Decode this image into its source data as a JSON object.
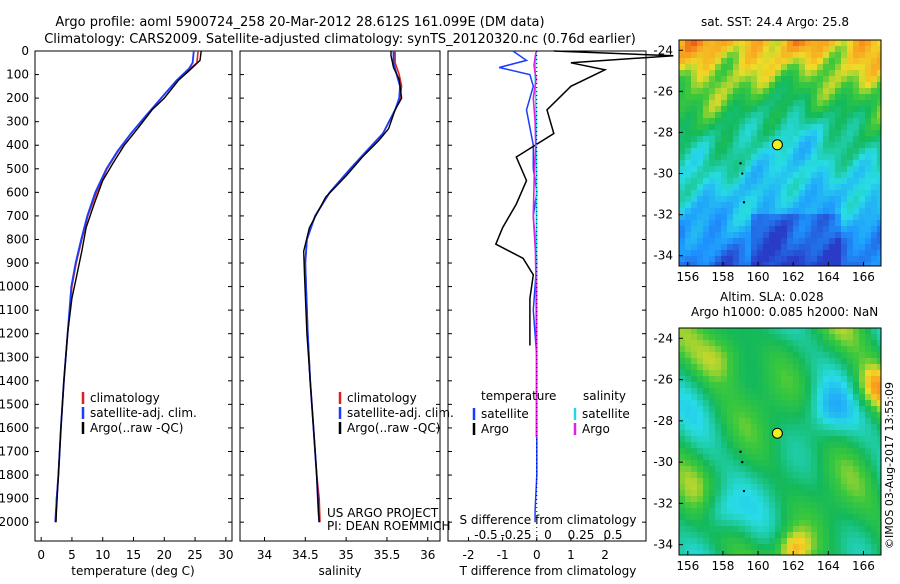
{
  "title": {
    "line1": "Argo profile: aoml 5900724_258 20-Mar-2012 28.612S 161.099E (DM data)",
    "line2": "Climatology: CARS2009. Satellite-adjusted climatology: synTS_20120320.nc (0.76d earlier)"
  },
  "colors": {
    "climatology": "#e02020",
    "satellite": "#1a3cff",
    "argo": "#000000",
    "sat_salinity": "#22d8e8",
    "argo_salinity": "#e020e0"
  },
  "chart_data": [
    {
      "id": "temperature",
      "type": "line",
      "xlabel": "temperature (deg C)",
      "xlim": [
        -1,
        31
      ],
      "xticks": [
        0,
        5,
        10,
        15,
        20,
        25,
        30
      ],
      "ylim": [
        0,
        2080
      ],
      "yticks": [
        0,
        100,
        200,
        300,
        400,
        500,
        600,
        700,
        800,
        900,
        1000,
        1100,
        1200,
        1300,
        1400,
        1500,
        1600,
        1700,
        1800,
        1900,
        2000
      ],
      "legend": [
        "climatology",
        "satellite-adj. clim.",
        "Argo(..raw -QC)"
      ],
      "series": [
        {
          "name": "climatology",
          "x": [
            25.5,
            25.3,
            24.2,
            22.0,
            19.5,
            17.0,
            14.6,
            12.5,
            10.7,
            9.0,
            7.6,
            6.6,
            5.7,
            5.0,
            4.3,
            3.7,
            3.2,
            2.8,
            2.5,
            2.4
          ],
          "y": [
            0,
            50,
            75,
            125,
            200,
            275,
            350,
            425,
            500,
            600,
            700,
            800,
            900,
            1000,
            1200,
            1400,
            1600,
            1800,
            1900,
            2000
          ]
        },
        {
          "name": "satellite-adj. clim.",
          "x": [
            24.8,
            24.6,
            24.0,
            22.0,
            19.5,
            17.0,
            14.6,
            12.4,
            10.6,
            8.8,
            7.5,
            6.5,
            5.6,
            4.9,
            4.3,
            3.7,
            3.2,
            2.8,
            2.4,
            2.3
          ],
          "y": [
            0,
            50,
            75,
            125,
            200,
            275,
            350,
            425,
            500,
            600,
            700,
            800,
            900,
            1000,
            1200,
            1400,
            1600,
            1800,
            1950,
            2000
          ]
        },
        {
          "name": "Argo(..raw -QC)",
          "x": [
            26.0,
            25.9,
            25.8,
            24.2,
            22.3,
            20.0,
            18.0,
            15.8,
            13.5,
            11.7,
            10.0,
            8.6,
            7.3,
            6.6,
            5.8,
            5.0,
            4.3,
            3.7,
            3.2,
            2.8,
            2.5,
            2.4
          ],
          "y": [
            0,
            20,
            40,
            80,
            125,
            200,
            250,
            325,
            400,
            475,
            550,
            650,
            750,
            850,
            950,
            1050,
            1200,
            1400,
            1600,
            1800,
            1950,
            2000
          ]
        }
      ]
    },
    {
      "id": "salinity",
      "type": "line",
      "xlabel": "salinity",
      "xlim": [
        33.7,
        36.15
      ],
      "xticks": [
        34,
        34.5,
        35,
        35.5,
        36
      ],
      "ylim": [
        0,
        2080
      ],
      "legend": [
        "climatology",
        "satellite-adj. clim.",
        "Argo(..raw -QC)"
      ],
      "annotation": [
        "US ARGO PROJECT",
        "PI: DEAN ROEMMICH"
      ],
      "series": [
        {
          "name": "climatology",
          "x": [
            35.6,
            35.6,
            35.65,
            35.68,
            35.66,
            35.6,
            35.45,
            35.25,
            35.05,
            34.8,
            34.62,
            34.52,
            34.5,
            34.51,
            34.53,
            34.56,
            34.6,
            34.64,
            34.67,
            34.68
          ],
          "y": [
            0,
            50,
            100,
            150,
            200,
            250,
            350,
            425,
            500,
            600,
            700,
            800,
            900,
            1000,
            1200,
            1400,
            1600,
            1800,
            1900,
            2000
          ]
        },
        {
          "name": "satellite-adj. clim.",
          "x": [
            35.58,
            35.58,
            35.62,
            35.66,
            35.65,
            35.6,
            35.45,
            35.25,
            35.05,
            34.8,
            34.62,
            34.52,
            34.5,
            34.51,
            34.53,
            34.56,
            34.6,
            34.64,
            34.66,
            34.67
          ],
          "y": [
            0,
            50,
            100,
            150,
            200,
            250,
            350,
            425,
            500,
            600,
            700,
            800,
            900,
            1000,
            1200,
            1400,
            1600,
            1800,
            1950,
            2000
          ]
        },
        {
          "name": "Argo(..raw -QC)",
          "x": [
            35.55,
            35.55,
            35.58,
            35.65,
            35.68,
            35.6,
            35.52,
            35.4,
            35.2,
            35.0,
            34.75,
            34.55,
            34.48,
            34.49,
            34.52,
            34.56,
            34.6,
            34.64,
            34.66,
            34.67
          ],
          "y": [
            0,
            20,
            70,
            120,
            200,
            250,
            330,
            380,
            450,
            530,
            620,
            750,
            850,
            950,
            1200,
            1400,
            1600,
            1800,
            1950,
            2000
          ]
        }
      ]
    },
    {
      "id": "differences",
      "type": "line",
      "xlabel_bottom": "T difference from climatology",
      "xlabel_top": "S difference from climatology",
      "xlim": [
        -2.6,
        3.2
      ],
      "xticks_T": [
        -2,
        -1,
        0,
        1,
        2
      ],
      "xticks_S": [
        "-0.5",
        "-0.25",
        "0",
        "0.25",
        "0.5"
      ],
      "ylim": [
        0,
        2080
      ],
      "legend_left": {
        "title": "temperature",
        "items": [
          "satellite",
          "Argo"
        ]
      },
      "legend_right": {
        "title": "salinity",
        "items": [
          "satellite",
          "Argo"
        ]
      },
      "series": [
        {
          "name": "T satellite",
          "x": [
            -0.7,
            -0.3,
            -1.1,
            -0.2,
            -0.1,
            -0.3,
            -0.1,
            -0.1,
            0.0,
            -0.1,
            0.0,
            -0.1,
            0.0,
            0.0,
            0.0,
            -0.05,
            -0.05
          ],
          "y": [
            0,
            40,
            70,
            100,
            150,
            250,
            400,
            500,
            600,
            700,
            900,
            1100,
            1300,
            1500,
            1800,
            1950,
            2000
          ]
        },
        {
          "name": "T Argo",
          "x": [
            0.5,
            4.0,
            1.0,
            2.0,
            1.0,
            0.3,
            0.5,
            -0.6,
            -0.3,
            -0.6,
            -1.0,
            -1.2,
            -0.4,
            -0.1,
            -0.2,
            -0.2,
            -0.2
          ],
          "y": [
            0,
            20,
            50,
            80,
            150,
            250,
            350,
            450,
            550,
            650,
            750,
            820,
            880,
            950,
            1050,
            1150,
            1250
          ]
        },
        {
          "name": "S satellite",
          "x": [
            -0.02,
            -0.05,
            -0.03,
            -0.02,
            -0.02,
            -0.01,
            -0.01,
            0.0,
            0.0,
            0.0,
            -0.01,
            -0.01
          ],
          "y": [
            0,
            100,
            200,
            300,
            400,
            600,
            800,
            1000,
            1200,
            1400,
            1600,
            1640
          ]
        },
        {
          "name": "S Argo",
          "x": [
            -0.02,
            -0.08,
            -0.02,
            -0.1,
            -0.05,
            -0.03,
            -0.07,
            -0.1,
            -0.04,
            -0.02,
            -0.01,
            -0.01
          ],
          "y": [
            0,
            60,
            120,
            200,
            300,
            400,
            500,
            700,
            850,
            1000,
            1300,
            1640
          ]
        }
      ]
    }
  ],
  "maps": {
    "sst": {
      "title": "sat. SST: 24.4  Argo: 25.8",
      "xticks": [
        156,
        158,
        160,
        162,
        164,
        166
      ],
      "yticks": [
        -24,
        -26,
        -28,
        -30,
        -32,
        -34
      ],
      "lon_range": [
        155.5,
        167
      ],
      "lat_range": [
        -23.5,
        -34.5
      ],
      "argo_lon": 161.1,
      "argo_lat": -28.6
    },
    "sla": {
      "title_line1": "Altim. SLA: 0.028",
      "title_line2": "Argo h1000: 0.085 h2000: NaN",
      "xticks": [
        156,
        158,
        160,
        162,
        164,
        166
      ],
      "yticks": [
        -24,
        -26,
        -28,
        -30,
        -32,
        -34
      ],
      "lon_range": [
        155.5,
        167
      ],
      "lat_range": [
        -23.5,
        -34.5
      ],
      "argo_lon": 161.1,
      "argo_lat": -28.6
    }
  },
  "credit": "©IMOS 03-Aug-2017 13:55:09"
}
